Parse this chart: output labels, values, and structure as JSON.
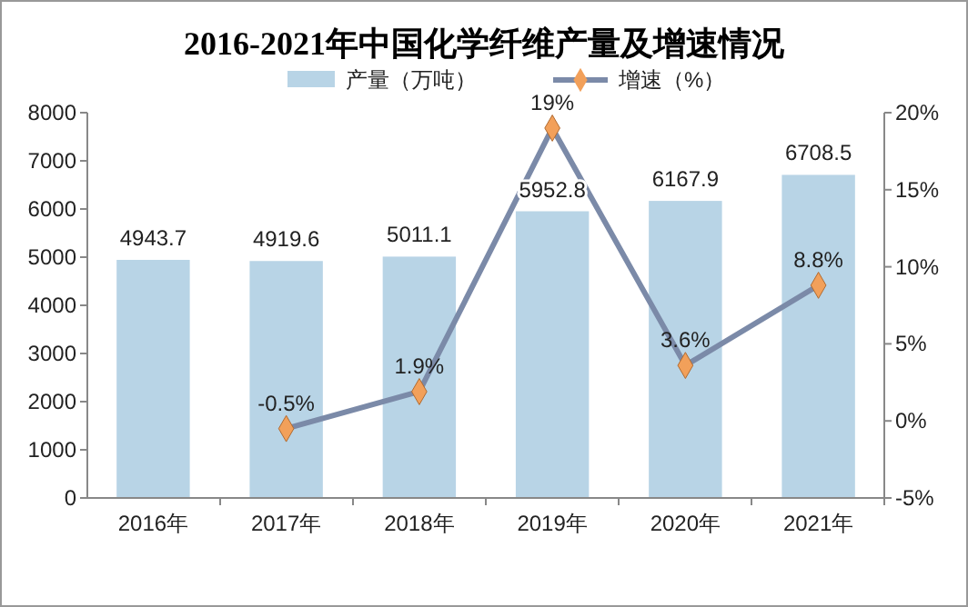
{
  "chart_data": {
    "type": "bar",
    "title": "2016-2021年中国化学纤维产量及增速情况",
    "categories": [
      "2016年",
      "2017年",
      "2018年",
      "2019年",
      "2020年",
      "2021年"
    ],
    "series": [
      {
        "name": "产量（万吨）",
        "color": "#b8d4e6",
        "values": [
          4943.7,
          4919.6,
          5011.1,
          5952.8,
          6167.9,
          6708.5
        ],
        "value_labels": [
          "4943.7",
          "4919.6",
          "5011.1",
          "5952.8",
          "6167.9",
          "6708.5"
        ]
      },
      {
        "name": "增速（%）",
        "type": "line",
        "axis": "y2",
        "color": "#7b8aa8",
        "colors": [
          null,
          "#f2a05a",
          "#f2a05a",
          "#f2a05a",
          "#f2a05a",
          "#f2a05a"
        ],
        "values": [
          null,
          -0.5,
          1.9,
          19,
          3.6,
          8.8
        ],
        "value_labels": [
          null,
          "-0.5%",
          "1.9%",
          "19%",
          "3.6%",
          "8.8%"
        ]
      }
    ],
    "ylim": [
      0,
      8000
    ],
    "yticks": [
      0,
      1000,
      2000,
      3000,
      4000,
      5000,
      6000,
      7000,
      8000
    ],
    "y2lim": [
      -5,
      20
    ],
    "y2ticks": [
      {
        "value": -5,
        "label": "-5%"
      },
      {
        "value": 0,
        "label": "0%"
      },
      {
        "value": 5,
        "label": "5%"
      },
      {
        "value": 10,
        "label": "10%"
      },
      {
        "value": 15,
        "label": "15%"
      },
      {
        "value": 20,
        "label": "20%"
      }
    ],
    "legend": "top",
    "marker": "diamond",
    "grid": false
  }
}
